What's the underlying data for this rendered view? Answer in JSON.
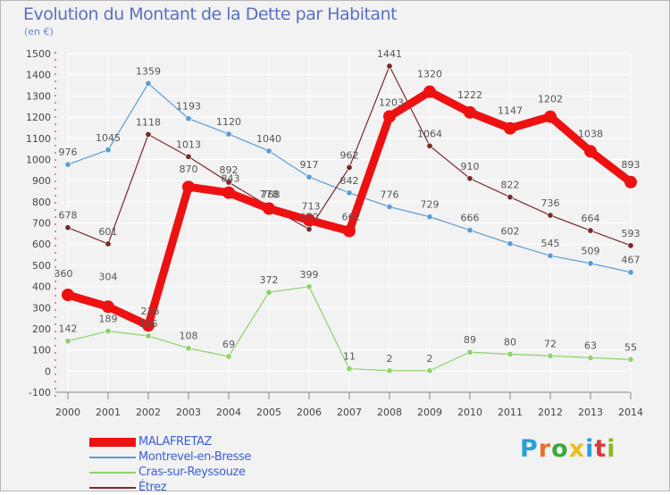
{
  "title": "Evolution du Montant de la Dette par Habitant",
  "subtitle": "(en €)",
  "logo_text": "Proxiti",
  "logo_colors": [
    "#2a9fd8",
    "#e8702a",
    "#3aa83a",
    "#e8c020",
    "#2a9fd8",
    "#d83a3a",
    "#8ab82a"
  ],
  "colors": {
    "background": "#f2f2f2",
    "grid": "#ffffff",
    "axis": "#888888",
    "tick_text": "#444444",
    "value_text": "#555555"
  },
  "chart_data": {
    "type": "line",
    "title": "Evolution du Montant de la Dette par Habitant",
    "ylabel": "(en €)",
    "xlabel": "",
    "ylim": [
      -100,
      1500
    ],
    "yticks": [
      -100,
      0,
      100,
      200,
      300,
      400,
      500,
      600,
      700,
      800,
      900,
      1000,
      1100,
      1200,
      1300,
      1400,
      1500
    ],
    "x": [
      "2000",
      "2001",
      "2002",
      "2003",
      "2004",
      "2005",
      "2006",
      "2007",
      "2008",
      "2009",
      "2010",
      "2011",
      "2012",
      "2013",
      "2014"
    ],
    "grid": true,
    "legend_position": "bottom-left",
    "series": [
      {
        "name": "MALAFRETAZ",
        "color": "#ee1111",
        "thick": true,
        "values": [
          360,
          304,
          216,
          870,
          843,
          768,
          713,
          662,
          1203,
          1320,
          1222,
          1147,
          1202,
          1038,
          893
        ]
      },
      {
        "name": "Montrevel-en-Bresse",
        "color": "#5b9bd5",
        "thick": false,
        "values": [
          976,
          1045,
          1359,
          1193,
          1120,
          1040,
          917,
          842,
          776,
          729,
          666,
          602,
          545,
          509,
          467
        ]
      },
      {
        "name": "Cras-sur-Reyssouze",
        "color": "#8dd26a",
        "thick": false,
        "values": [
          142,
          189,
          166,
          108,
          69,
          372,
          399,
          11,
          2,
          2,
          89,
          80,
          72,
          63,
          55
        ]
      },
      {
        "name": "Étrez",
        "color": "#7a2a2a",
        "thick": false,
        "values": [
          678,
          601,
          1118,
          1013,
          892,
          778,
          670,
          962,
          1441,
          1064,
          910,
          822,
          736,
          664,
          593
        ]
      }
    ]
  }
}
